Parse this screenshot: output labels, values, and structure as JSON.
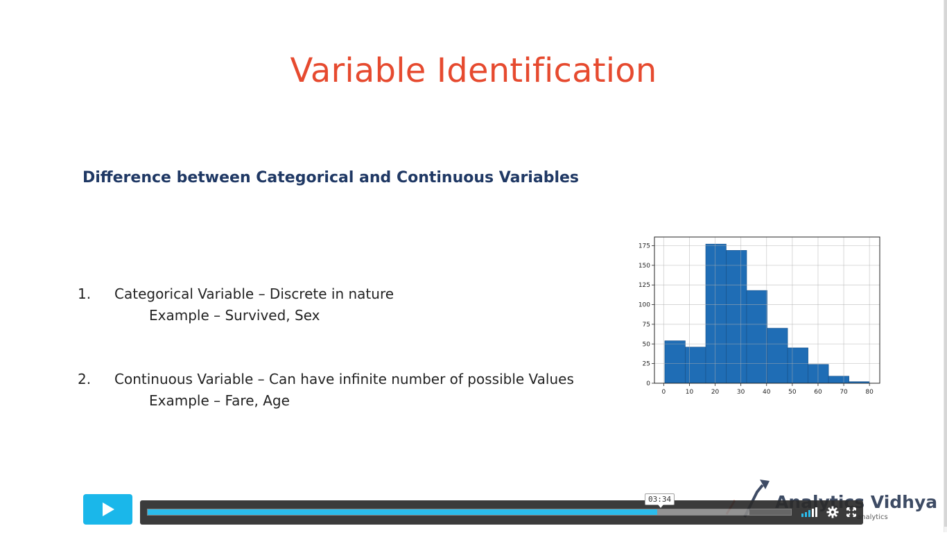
{
  "slide": {
    "title": "Variable Identification",
    "subtitle": "Difference between Categorical and Continuous Variables",
    "points": [
      {
        "number": "1.",
        "text": "Categorical Variable – Discrete in nature",
        "example": "Example – Survived, Sex"
      },
      {
        "number": "2.",
        "text": "Continuous Variable – Can have infinite number of possible Values",
        "example": "Example – Fare, Age"
      }
    ]
  },
  "chart_data": {
    "type": "bar",
    "x_bin_edges": [
      0.42,
      8.38,
      16.34,
      24.29,
      32.25,
      40.21,
      48.17,
      56.13,
      64.08,
      72.04,
      80.0
    ],
    "values": [
      54,
      46,
      177,
      169,
      118,
      70,
      45,
      24,
      9,
      2
    ],
    "xticks": [
      "0",
      "10",
      "20",
      "30",
      "40",
      "50",
      "60",
      "70",
      "80"
    ],
    "yticks": [
      "0",
      "25",
      "50",
      "75",
      "100",
      "125",
      "150",
      "175"
    ],
    "xlim": [
      -3.6,
      84
    ],
    "ylim": [
      0,
      186
    ],
    "grid": true,
    "color": "#1f6db5"
  },
  "player": {
    "play_icon": "play-icon",
    "current_time": "03:34",
    "progress_fraction": 0.792,
    "buffered_fraction": 0.935,
    "accent_color": "#1ab7ea",
    "volume_icon": "volume-bars-icon",
    "settings_icon": "gear-icon",
    "fullscreen_icon": "fullscreen-icon"
  },
  "watermark": {
    "brand": "Analytics Vidhya",
    "tagline": "analytics"
  }
}
